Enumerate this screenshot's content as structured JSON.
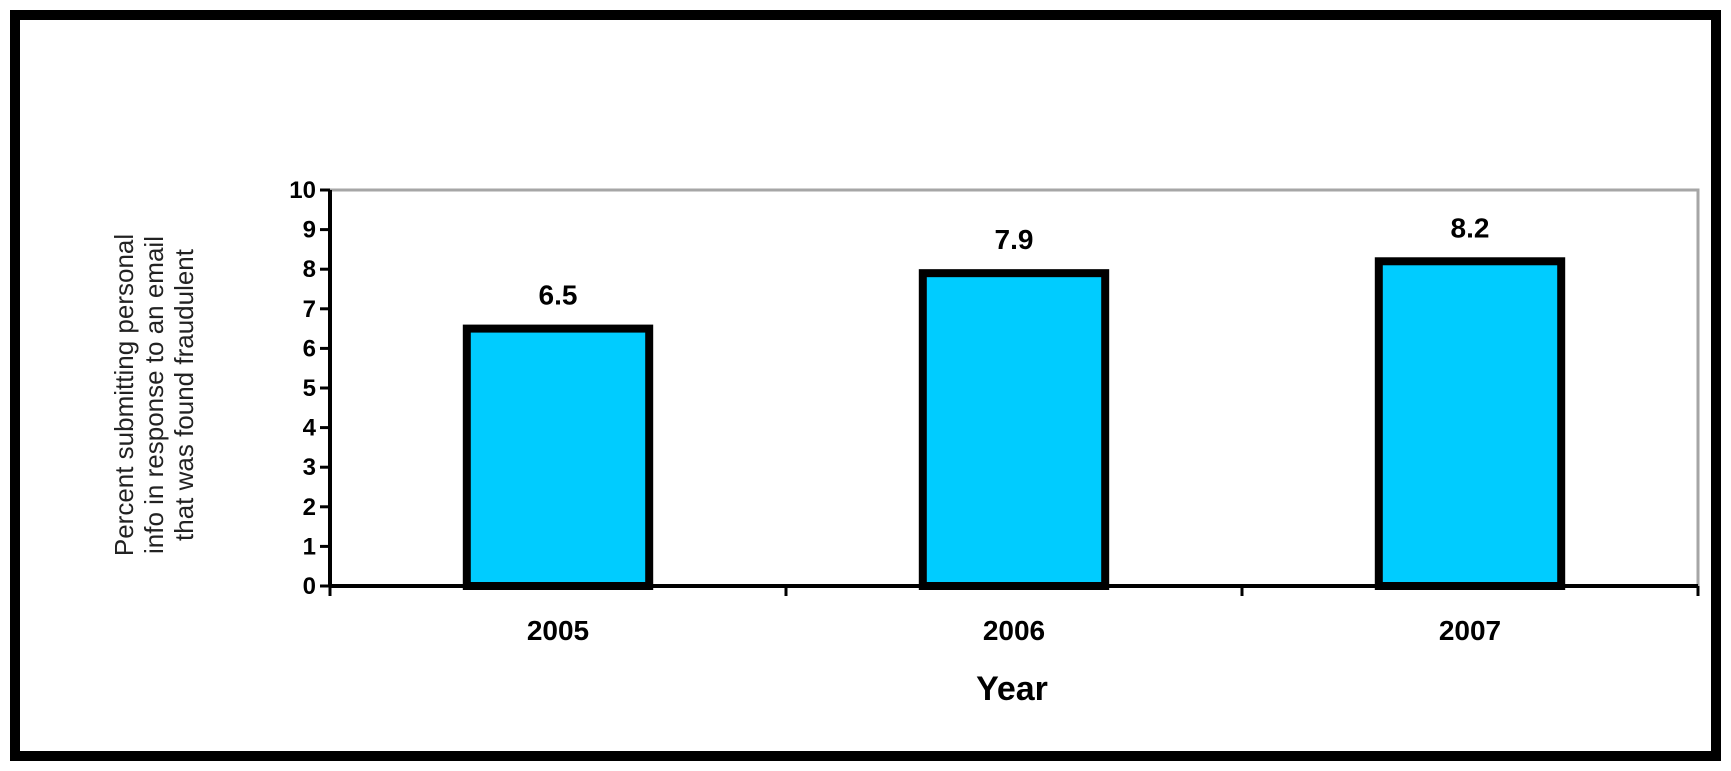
{
  "chart_data": {
    "type": "bar",
    "categories": [
      "2005",
      "2006",
      "2007"
    ],
    "values": [
      6.5,
      7.9,
      8.2
    ],
    "data_labels": [
      "6.5",
      "7.9",
      "8.2"
    ],
    "xlabel": "Year",
    "ylabel_lines": [
      "Percent submitting personal",
      "info in response to an email",
      "that was found fraudulent"
    ],
    "ylim": [
      0,
      10
    ],
    "yticks": [
      "0",
      "1",
      "2",
      "3",
      "4",
      "5",
      "6",
      "7",
      "8",
      "9",
      "10"
    ],
    "grid": false,
    "legend": "none",
    "colors": {
      "bar_fill": "#00ccff",
      "bar_stroke": "#000000",
      "plot_border": "#a6a6a6"
    }
  }
}
